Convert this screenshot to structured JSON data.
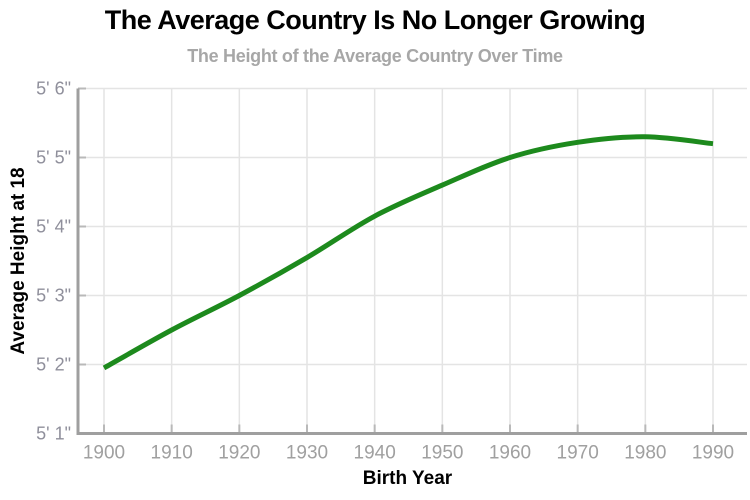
{
  "chart_data": {
    "type": "line",
    "title": "The Average Country Is No Longer Growing",
    "subtitle": "The Height of the Average Country Over Time",
    "xlabel": "Birth Year",
    "ylabel": "Average Height at 18",
    "x": [
      1900,
      1910,
      1920,
      1930,
      1940,
      1950,
      1960,
      1970,
      1980,
      1990
    ],
    "series": [
      {
        "name": "average-height-inches",
        "values": [
          61.95,
          62.5,
          63.0,
          63.55,
          64.15,
          64.6,
          65.0,
          65.22,
          65.3,
          65.2
        ]
      }
    ],
    "x_tick_labels": [
      "1900",
      "1910",
      "1920",
      "1930",
      "1940",
      "1950",
      "1960",
      "1970",
      "1980",
      "1990"
    ],
    "y_ticks": [
      {
        "value": 61,
        "label": "5' 1\""
      },
      {
        "value": 62,
        "label": "5' 2\""
      },
      {
        "value": 63,
        "label": "5' 3\""
      },
      {
        "value": 64,
        "label": "5' 4\""
      },
      {
        "value": 65,
        "label": "5' 5\""
      },
      {
        "value": 66,
        "label": "5' 6\""
      }
    ],
    "ylim": [
      61,
      66
    ],
    "xlim": [
      1900,
      1990
    ],
    "grid": true,
    "legend_position": "none",
    "colors": {
      "line": "#1d8a1d",
      "grid": "#e4e4e4",
      "axis": "#9f9f9f",
      "tick_mark": "#b9b9b9",
      "y_tick_label": "#8f8f9b",
      "x_tick_label": "#a0a0a0",
      "axis_title": "#000000",
      "title": "#000000",
      "subtitle": "#a7a7a7"
    }
  }
}
